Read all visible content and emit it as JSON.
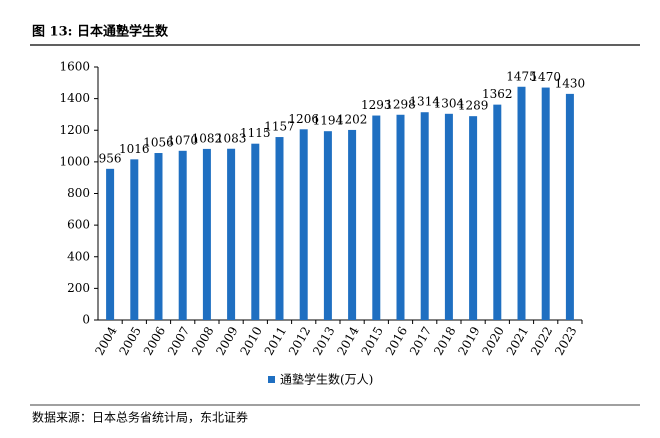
{
  "chart_data": {
    "type": "bar",
    "title": "图 13: 日本通塾学生数",
    "categories": [
      "2004",
      "2005",
      "2006",
      "2007",
      "2008",
      "2009",
      "2010",
      "2011",
      "2012",
      "2013",
      "2014",
      "2015",
      "2016",
      "2017",
      "2018",
      "2019",
      "2020",
      "2021",
      "2022",
      "2023"
    ],
    "series": [
      {
        "name": "通塾学生数(万人)",
        "color": "#1f6fc1",
        "values": [
          956,
          1016,
          1056,
          1070,
          1082,
          1083,
          1115,
          1157,
          1206,
          1194,
          1202,
          1293,
          1298,
          1314,
          1304,
          1289,
          1362,
          1475,
          1470,
          1430
        ]
      }
    ],
    "ylim": [
      0,
      1600
    ],
    "yticks": [
      0,
      200,
      400,
      600,
      800,
      1000,
      1200,
      1400,
      1600
    ],
    "source": "数据来源：日本总务省统计局，东北证券"
  }
}
